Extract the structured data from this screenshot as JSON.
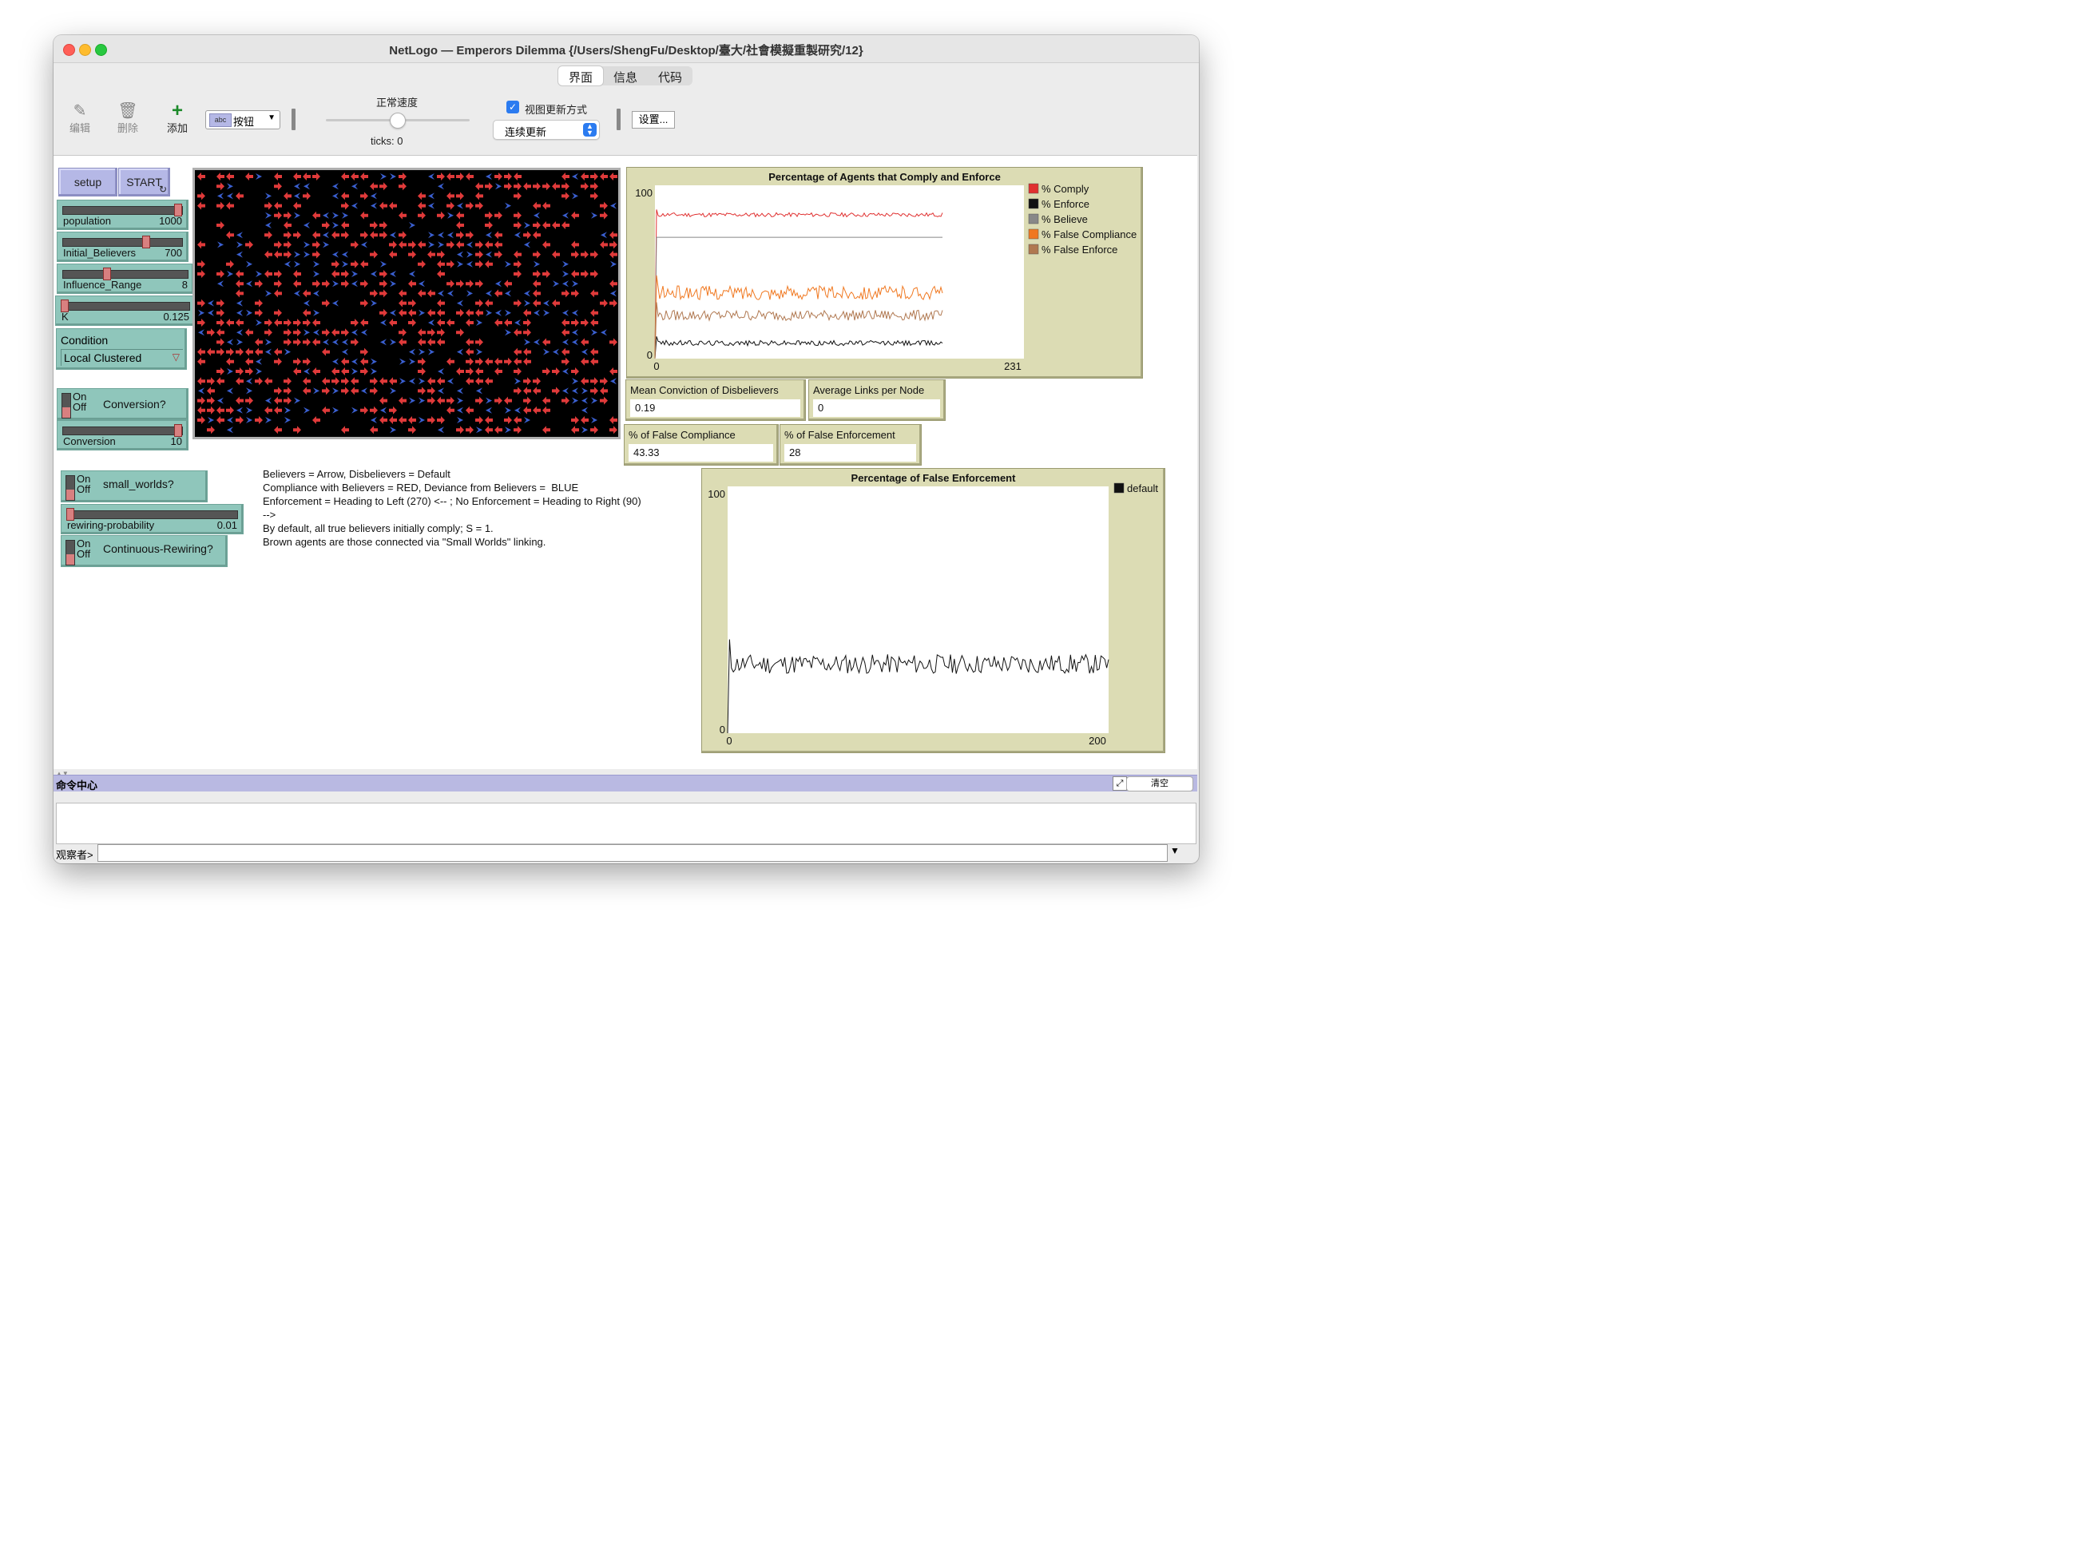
{
  "window": {
    "title": "NetLogo — Emperors Dilemma {/Users/ShengFu/Desktop/臺大/社會模擬重製研究/12}"
  },
  "tabs": [
    {
      "label": "界面",
      "active": true
    },
    {
      "label": "信息",
      "active": false
    },
    {
      "label": "代码",
      "active": false
    }
  ],
  "toolbar": {
    "edit_label": "编辑",
    "delete_label": "删除",
    "add_label": "添加",
    "widget_type": "按钮",
    "widget_type_icon_text": "abc",
    "speed_label": "正常速度",
    "ticks_text": "ticks: 0",
    "view_updates_label": "视图更新方式",
    "view_updates_checked": true,
    "update_mode": "连续更新",
    "settings_label": "设置..."
  },
  "buttons": {
    "setup": "setup",
    "start": "START"
  },
  "sliders": [
    {
      "name": "population",
      "value": "1000",
      "fraction": 0.98
    },
    {
      "name": "Initial_Believers",
      "value": "700",
      "fraction": 0.7
    },
    {
      "name": "Influence_Range",
      "value": "8",
      "fraction": 0.34
    },
    {
      "name": "K",
      "value": "0.125",
      "fraction": 0.0
    },
    {
      "name": "Conversion",
      "value": "10",
      "fraction": 0.98
    },
    {
      "name": "rewiring-probability",
      "value": "0.01",
      "fraction": 0.0
    }
  ],
  "chooser": {
    "label": "Condition",
    "value": "Local Clustered"
  },
  "switches": [
    {
      "name": "Conversion?",
      "on_text": "On",
      "off_text": "Off",
      "state": "off"
    },
    {
      "name": "small_worlds?",
      "on_text": "On",
      "off_text": "Off",
      "state": "off"
    },
    {
      "name": "Continuous-Rewiring?",
      "on_text": "On",
      "off_text": "Off",
      "state": "off"
    }
  ],
  "notes": "Believers = Arrow, Disbelievers = Default\nCompliance with Believers = RED, Deviance from Believers =  BLUE\nEnforcement = Heading to Left (270) <-- ; No Enforcement = Heading to Right (90)\n-->\nBy default, all true believers initially comply; S = 1.\nBrown agents are those connected via \"Small Worlds\" linking.",
  "monitors": [
    {
      "label": "Mean Conviction of Disbelievers",
      "value": "0.19"
    },
    {
      "label": "Average Links per Node",
      "value": "0"
    },
    {
      "label": "% of False Compliance",
      "value": "43.33"
    },
    {
      "label": "% of False Enforcement",
      "value": "28"
    }
  ],
  "colors": {
    "comply": "#e03030",
    "enforce": "#111111",
    "believe": "#888888",
    "false_compliance": "#f07820",
    "false_enforce": "#b07850",
    "agent_red": "#e03a3a",
    "agent_blue": "#3a5fd0"
  },
  "command_center": {
    "title": "命令中心",
    "clear_label": "清空",
    "prompt_label": "观察者>"
  },
  "chart_data": [
    {
      "type": "line",
      "title": "Percentage of Agents that Comply and Enforce",
      "xlim": [
        0,
        231
      ],
      "ylim": [
        0,
        100
      ],
      "xticks": [
        "0",
        "231"
      ],
      "yticks": [
        "0",
        "100"
      ],
      "legend": "right",
      "series": [
        {
          "name": "% Comply",
          "level": 83,
          "noise": 1.2
        },
        {
          "name": "% Enforce",
          "level": 9,
          "noise": 1.5
        },
        {
          "name": "% Believe",
          "level": 70,
          "noise": 0
        },
        {
          "name": "% False Compliance",
          "level": 38,
          "noise": 4
        },
        {
          "name": "% False Enforce",
          "level": 25,
          "noise": 3
        }
      ]
    },
    {
      "type": "line",
      "title": "Percentage of False Enforcement",
      "xlim": [
        0,
        200
      ],
      "ylim": [
        0,
        100
      ],
      "xticks": [
        "0",
        "200"
      ],
      "yticks": [
        "0",
        "100"
      ],
      "legend": "right",
      "series": [
        {
          "name": "default",
          "level": 28,
          "noise": 4
        }
      ]
    }
  ]
}
